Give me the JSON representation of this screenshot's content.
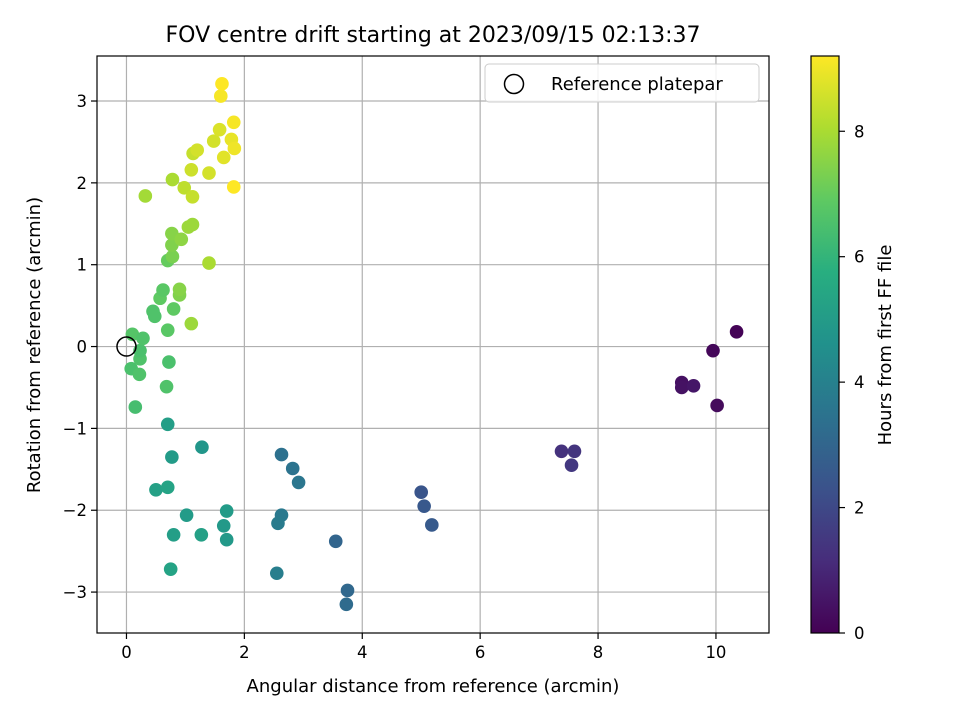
{
  "chart_data": {
    "type": "scatter",
    "title": "FOV centre drift starting at 2023/09/15 02:13:37",
    "xlabel": "Angular distance from reference (arcmin)",
    "ylabel": "Rotation from reference (arcmin)",
    "xlim": [
      -0.5,
      10.9
    ],
    "ylim": [
      -3.5,
      3.55
    ],
    "x_ticks": [
      0,
      2,
      4,
      6,
      8,
      10
    ],
    "y_ticks": [
      -3,
      -2,
      -1,
      0,
      1,
      2,
      3
    ],
    "grid": true,
    "legend": {
      "position": "top-right",
      "entries": [
        "Reference platepar"
      ]
    },
    "reference_point": {
      "x": 0,
      "y": 0
    },
    "colorbar": {
      "label": "Hours from first FF file",
      "colormap": "viridis",
      "range": [
        0,
        9.2
      ],
      "ticks": [
        0,
        2,
        4,
        6,
        8
      ]
    },
    "points": [
      {
        "x": 10.35,
        "y": 0.18,
        "c": 0.05
      },
      {
        "x": 9.95,
        "y": -0.05,
        "c": 0.15
      },
      {
        "x": 10.02,
        "y": -0.72,
        "c": 0.25
      },
      {
        "x": 9.42,
        "y": -0.44,
        "c": 0.4
      },
      {
        "x": 9.42,
        "y": -0.5,
        "c": 0.45
      },
      {
        "x": 9.62,
        "y": -0.48,
        "c": 0.55
      },
      {
        "x": 7.38,
        "y": -1.28,
        "c": 1.3
      },
      {
        "x": 7.6,
        "y": -1.28,
        "c": 1.4
      },
      {
        "x": 7.55,
        "y": -1.45,
        "c": 1.5
      },
      {
        "x": 5.0,
        "y": -1.78,
        "c": 2.4
      },
      {
        "x": 5.05,
        "y": -1.95,
        "c": 2.5
      },
      {
        "x": 5.18,
        "y": -2.18,
        "c": 2.6
      },
      {
        "x": 3.55,
        "y": -2.38,
        "c": 3.0
      },
      {
        "x": 3.75,
        "y": -2.98,
        "c": 3.1
      },
      {
        "x": 3.73,
        "y": -3.15,
        "c": 3.2
      },
      {
        "x": 2.63,
        "y": -1.32,
        "c": 3.4
      },
      {
        "x": 2.82,
        "y": -1.49,
        "c": 3.5
      },
      {
        "x": 2.92,
        "y": -1.66,
        "c": 3.6
      },
      {
        "x": 2.63,
        "y": -2.06,
        "c": 3.7
      },
      {
        "x": 2.57,
        "y": -2.16,
        "c": 3.8
      },
      {
        "x": 2.55,
        "y": -2.77,
        "c": 3.9
      },
      {
        "x": 1.28,
        "y": -1.23,
        "c": 4.8
      },
      {
        "x": 0.77,
        "y": -1.35,
        "c": 5.0
      },
      {
        "x": 0.7,
        "y": -0.95,
        "c": 5.1
      },
      {
        "x": 0.5,
        "y": -1.75,
        "c": 5.2
      },
      {
        "x": 0.7,
        "y": -1.72,
        "c": 5.3
      },
      {
        "x": 1.02,
        "y": -2.06,
        "c": 5.0
      },
      {
        "x": 0.8,
        "y": -2.3,
        "c": 5.1
      },
      {
        "x": 1.27,
        "y": -2.3,
        "c": 5.2
      },
      {
        "x": 1.7,
        "y": -2.01,
        "c": 5.0
      },
      {
        "x": 1.65,
        "y": -2.19,
        "c": 4.9
      },
      {
        "x": 1.7,
        "y": -2.36,
        "c": 4.9
      },
      {
        "x": 0.75,
        "y": -2.72,
        "c": 5.3
      },
      {
        "x": 0.15,
        "y": -0.74,
        "c": 6.4
      },
      {
        "x": 0.08,
        "y": -0.27,
        "c": 6.5
      },
      {
        "x": 0.22,
        "y": -0.34,
        "c": 6.6
      },
      {
        "x": 0.23,
        "y": -0.15,
        "c": 6.6
      },
      {
        "x": 0.23,
        "y": -0.05,
        "c": 6.5
      },
      {
        "x": 0.1,
        "y": 0.15,
        "c": 6.7
      },
      {
        "x": 0.28,
        "y": 0.1,
        "c": 6.6
      },
      {
        "x": 0.68,
        "y": -0.49,
        "c": 6.6
      },
      {
        "x": 0.72,
        "y": -0.19,
        "c": 6.5
      },
      {
        "x": 0.7,
        "y": 0.2,
        "c": 6.8
      },
      {
        "x": 0.45,
        "y": 0.43,
        "c": 6.6
      },
      {
        "x": 0.48,
        "y": 0.37,
        "c": 6.6
      },
      {
        "x": 0.57,
        "y": 0.59,
        "c": 6.9
      },
      {
        "x": 0.62,
        "y": 0.69,
        "c": 6.8
      },
      {
        "x": 0.8,
        "y": 0.46,
        "c": 6.9
      },
      {
        "x": 0.9,
        "y": 0.63,
        "c": 7.4
      },
      {
        "x": 0.9,
        "y": 0.7,
        "c": 7.5
      },
      {
        "x": 1.1,
        "y": 0.28,
        "c": 7.8
      },
      {
        "x": 0.7,
        "y": 1.05,
        "c": 7.0
      },
      {
        "x": 0.78,
        "y": 1.1,
        "c": 7.3
      },
      {
        "x": 0.77,
        "y": 1.24,
        "c": 7.4
      },
      {
        "x": 0.77,
        "y": 1.38,
        "c": 7.5
      },
      {
        "x": 0.93,
        "y": 1.31,
        "c": 7.6
      },
      {
        "x": 1.05,
        "y": 1.46,
        "c": 7.8
      },
      {
        "x": 1.12,
        "y": 1.49,
        "c": 7.8
      },
      {
        "x": 1.4,
        "y": 1.02,
        "c": 8.0
      },
      {
        "x": 0.32,
        "y": 1.84,
        "c": 7.9
      },
      {
        "x": 0.78,
        "y": 2.04,
        "c": 8.0
      },
      {
        "x": 0.98,
        "y": 1.94,
        "c": 8.3
      },
      {
        "x": 1.12,
        "y": 1.83,
        "c": 8.4
      },
      {
        "x": 1.1,
        "y": 2.16,
        "c": 8.5
      },
      {
        "x": 1.13,
        "y": 2.36,
        "c": 8.4
      },
      {
        "x": 1.2,
        "y": 2.4,
        "c": 8.6
      },
      {
        "x": 1.4,
        "y": 2.12,
        "c": 8.6
      },
      {
        "x": 1.48,
        "y": 2.51,
        "c": 8.6
      },
      {
        "x": 1.58,
        "y": 2.65,
        "c": 8.7
      },
      {
        "x": 1.65,
        "y": 2.31,
        "c": 8.8
      },
      {
        "x": 1.78,
        "y": 2.53,
        "c": 8.9
      },
      {
        "x": 1.83,
        "y": 2.42,
        "c": 9.0
      },
      {
        "x": 1.82,
        "y": 2.74,
        "c": 9.1
      },
      {
        "x": 1.82,
        "y": 1.95,
        "c": 9.2
      },
      {
        "x": 1.6,
        "y": 3.06,
        "c": 9.1
      },
      {
        "x": 1.62,
        "y": 3.21,
        "c": 9.2
      }
    ]
  }
}
